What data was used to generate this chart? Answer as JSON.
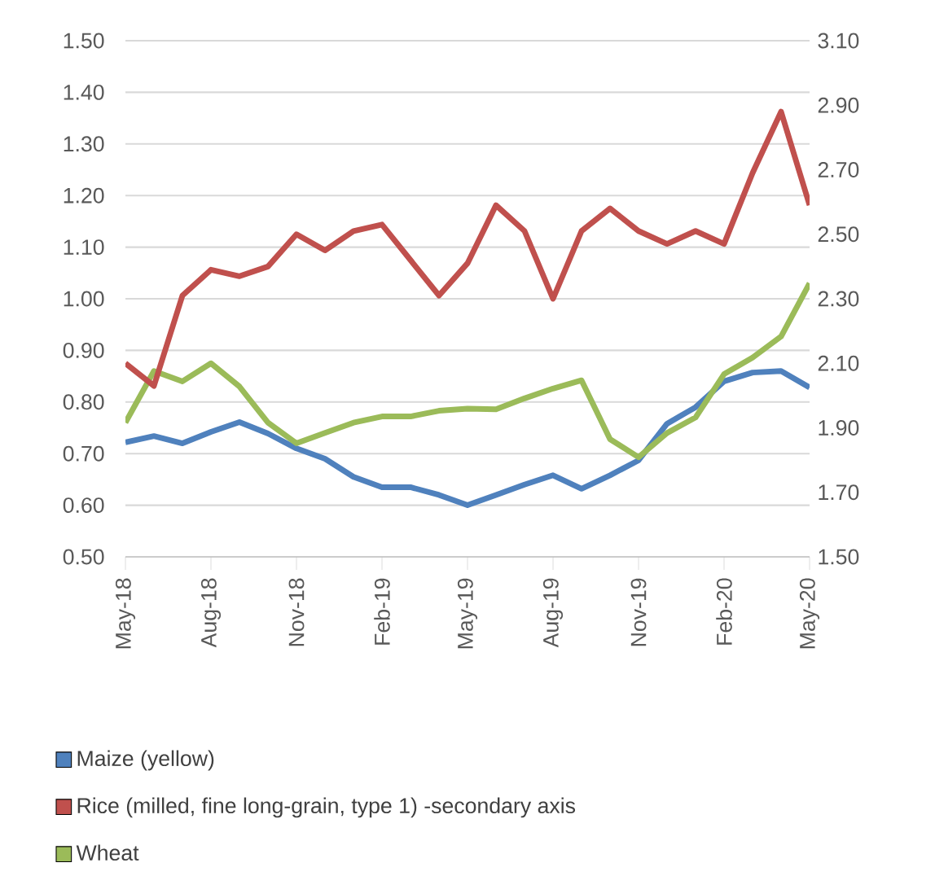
{
  "chart_data": {
    "type": "line",
    "x": [
      "2018-05",
      "2018-06",
      "2018-07",
      "2018-08",
      "2018-09",
      "2018-10",
      "2018-11",
      "2018-12",
      "2019-01",
      "2019-02",
      "2019-03",
      "2019-04",
      "2019-05",
      "2019-06",
      "2019-07",
      "2019-08",
      "2019-09",
      "2019-10",
      "2019-11",
      "2019-12",
      "2020-01",
      "2020-02",
      "2020-03",
      "2020-04",
      "2020-05"
    ],
    "xlim": [
      "2018-05",
      "2020-05"
    ],
    "xticks": [
      {
        "value": "2018-05",
        "label": "May-18"
      },
      {
        "value": "2018-08",
        "label": "Aug-18"
      },
      {
        "value": "2018-11",
        "label": "Nov-18"
      },
      {
        "value": "2019-02",
        "label": "Feb-19"
      },
      {
        "value": "2019-05",
        "label": "May-19"
      },
      {
        "value": "2019-08",
        "label": "Aug-19"
      },
      {
        "value": "2019-11",
        "label": "Nov-19"
      },
      {
        "value": "2020-02",
        "label": "Feb-20"
      },
      {
        "value": "2020-05",
        "label": "May-20"
      }
    ],
    "ylim": [
      0.5,
      1.5
    ],
    "yticks": [
      {
        "value": 0.5,
        "label": "0.50"
      },
      {
        "value": 0.6,
        "label": "0.60"
      },
      {
        "value": 0.7,
        "label": "0.70"
      },
      {
        "value": 0.8,
        "label": "0.80"
      },
      {
        "value": 0.9,
        "label": "0.90"
      },
      {
        "value": 1.0,
        "label": "1.00"
      },
      {
        "value": 1.1,
        "label": "1.10"
      },
      {
        "value": 1.2,
        "label": "1.20"
      },
      {
        "value": 1.3,
        "label": "1.30"
      },
      {
        "value": 1.4,
        "label": "1.40"
      },
      {
        "value": 1.5,
        "label": "1.50"
      }
    ],
    "y2lim": [
      1.5,
      3.1
    ],
    "y2ticks": [
      {
        "value": 1.5,
        "label": "1.50"
      },
      {
        "value": 1.7,
        "label": "1.70"
      },
      {
        "value": 1.9,
        "label": "1.90"
      },
      {
        "value": 2.1,
        "label": "2.10"
      },
      {
        "value": 2.3,
        "label": "2.30"
      },
      {
        "value": 2.5,
        "label": "2.50"
      },
      {
        "value": 2.7,
        "label": "2.70"
      },
      {
        "value": 2.9,
        "label": "2.90"
      },
      {
        "value": 3.1,
        "label": "3.10"
      }
    ],
    "grid": "y",
    "legend": "bottom",
    "series": [
      {
        "name": "Maize (yellow)",
        "color": "#4f81bd",
        "values": [
          0.722,
          0.734,
          0.72,
          0.742,
          0.761,
          0.739,
          0.71,
          0.69,
          0.655,
          0.635,
          0.635,
          0.62,
          0.6,
          0.62,
          0.64,
          0.658,
          0.632,
          0.658,
          0.687,
          0.758,
          0.79,
          0.84,
          0.857,
          0.86,
          0.828
        ]
      },
      {
        "name": "Rice (milled, fine long-grain, type 1) -secondary axis",
        "color": "#c0504d",
        "axis": "y2",
        "values": [
          2.1,
          2.03,
          2.31,
          2.39,
          2.37,
          2.4,
          2.5,
          2.45,
          2.51,
          2.53,
          2.42,
          2.31,
          2.41,
          2.59,
          2.51,
          2.3,
          2.51,
          2.58,
          2.51,
          2.47,
          2.51,
          2.47,
          2.69,
          2.88,
          2.59
        ]
      },
      {
        "name": "Wheat",
        "color": "#9bbb59",
        "values": [
          0.76,
          0.86,
          0.84,
          0.875,
          0.83,
          0.76,
          0.72,
          0.74,
          0.76,
          0.772,
          0.772,
          0.783,
          0.787,
          0.786,
          0.807,
          0.826,
          0.842,
          0.728,
          0.693,
          0.74,
          0.77,
          0.854,
          0.886,
          0.927,
          1.03
        ]
      }
    ]
  }
}
